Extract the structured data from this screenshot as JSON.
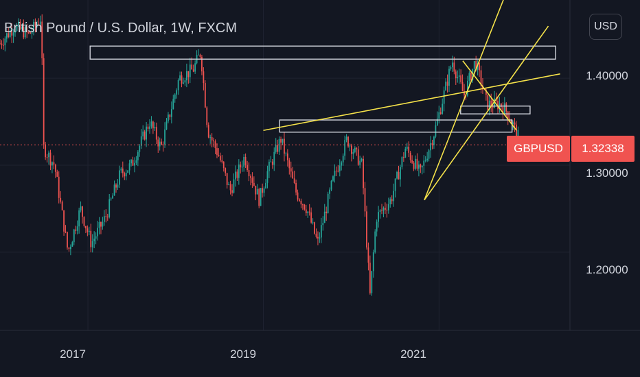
{
  "header": {
    "title": "British Pound / U.S. Dollar, 1W, FXCM",
    "currency_button": "USD"
  },
  "colors": {
    "background": "#131722",
    "up_candle": "#26a69a",
    "down_candle": "#ef5350",
    "trendline": "#f5e24a",
    "zone_border": "#d1d4dc",
    "price_label": "#f05350"
  },
  "chart_data": {
    "type": "candlestick",
    "symbol": "GBPUSD",
    "interval": "1W",
    "last_price_label": "1.32338",
    "last_price": 1.32338,
    "ylim": [
      1.11,
      1.49
    ],
    "y_ticks": [
      {
        "value": 1.2,
        "label": "1.20000"
      },
      {
        "value": 1.3,
        "label": "1.30000"
      },
      {
        "value": 1.4,
        "label": "1.40000"
      }
    ],
    "xlim": [
      "2016-01-01",
      "2022-06-30"
    ],
    "x_ticks": [
      {
        "date": "2017-01-01",
        "label": "2017"
      },
      {
        "date": "2019-01-01",
        "label": "2019"
      },
      {
        "date": "2021-01-01",
        "label": "2021"
      }
    ],
    "grid": true,
    "price_path": [
      [
        "2016-01-01",
        1.44
      ],
      [
        "2016-03-01",
        1.46
      ],
      [
        "2016-05-01",
        1.45
      ],
      [
        "2016-06-20",
        1.47
      ],
      [
        "2016-07-01",
        1.32
      ],
      [
        "2016-08-15",
        1.3
      ],
      [
        "2016-10-10",
        1.2
      ],
      [
        "2016-12-01",
        1.25
      ],
      [
        "2017-01-15",
        1.21
      ],
      [
        "2017-03-15",
        1.24
      ],
      [
        "2017-05-15",
        1.29
      ],
      [
        "2017-07-01",
        1.3
      ],
      [
        "2017-09-15",
        1.35
      ],
      [
        "2017-11-01",
        1.32
      ],
      [
        "2018-01-15",
        1.4
      ],
      [
        "2018-03-15",
        1.41
      ],
      [
        "2018-04-15",
        1.43
      ],
      [
        "2018-05-15",
        1.34
      ],
      [
        "2018-07-01",
        1.31
      ],
      [
        "2018-08-15",
        1.27
      ],
      [
        "2018-10-15",
        1.31
      ],
      [
        "2018-12-15",
        1.26
      ],
      [
        "2019-01-15",
        1.29
      ],
      [
        "2019-03-15",
        1.33
      ],
      [
        "2019-05-15",
        1.27
      ],
      [
        "2019-07-01",
        1.25
      ],
      [
        "2019-08-15",
        1.21
      ],
      [
        "2019-10-15",
        1.28
      ],
      [
        "2019-12-15",
        1.33
      ],
      [
        "2020-02-15",
        1.3
      ],
      [
        "2020-03-20",
        1.15
      ],
      [
        "2020-04-15",
        1.24
      ],
      [
        "2020-06-15",
        1.26
      ],
      [
        "2020-08-15",
        1.32
      ],
      [
        "2020-10-15",
        1.29
      ],
      [
        "2020-12-15",
        1.34
      ],
      [
        "2021-02-25",
        1.42
      ],
      [
        "2021-04-15",
        1.38
      ],
      [
        "2021-06-01",
        1.42
      ],
      [
        "2021-07-20",
        1.37
      ],
      [
        "2021-09-15",
        1.37
      ],
      [
        "2021-10-15",
        1.36
      ],
      [
        "2021-11-30",
        1.33
      ]
    ],
    "annotations": {
      "trendlines": [
        {
          "from": [
            "2019-01-01",
            1.34
          ],
          "to": [
            "2022-05-20",
            1.405
          ]
        },
        {
          "from": [
            "2020-11-01",
            1.26
          ],
          "to": [
            "2021-10-10",
            1.5
          ]
        },
        {
          "from": [
            "2020-11-01",
            1.26
          ],
          "to": [
            "2022-04-01",
            1.46
          ]
        },
        {
          "from": [
            "2021-04-10",
            1.42
          ],
          "to": [
            "2021-11-20",
            1.34
          ]
        }
      ],
      "zones": [
        {
          "from": "2017-01-10",
          "to": "2022-05-01",
          "low": 1.422,
          "high": 1.437
        },
        {
          "from": "2019-03-10",
          "to": "2021-11-01",
          "low": 1.338,
          "high": 1.352
        },
        {
          "from": "2021-04-01",
          "to": "2022-01-15",
          "low": 1.359,
          "high": 1.368
        }
      ]
    }
  }
}
